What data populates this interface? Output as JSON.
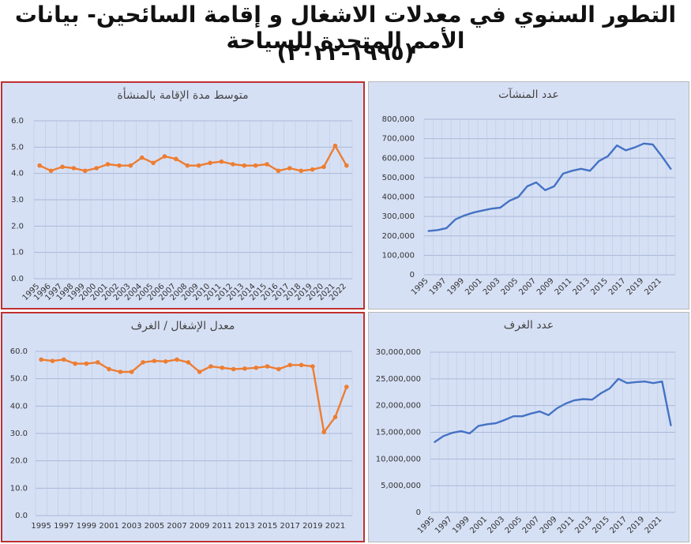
{
  "page": {
    "title_line1": "التطور السنوي في معدلات الاشغال و إقامة السائحين- بيانات الأمم المتحدة للسياحة",
    "title_line2": "(١٩٩٥-٢٠٢٢)"
  },
  "chart_data": [
    {
      "id": "avg-stay",
      "type": "line",
      "title": "متوسط مدة الإقامة بالمنشأة",
      "x": [
        1995,
        1996,
        1997,
        1998,
        1999,
        2000,
        2001,
        2002,
        2003,
        2004,
        2005,
        2006,
        2007,
        2008,
        2009,
        2010,
        2011,
        2012,
        2013,
        2014,
        2015,
        2016,
        2017,
        2018,
        2019,
        2020,
        2021,
        2022
      ],
      "x_tick_labels": [
        "1995",
        "1996",
        "1997",
        "1998",
        "1999",
        "2000",
        "2001",
        "2002",
        "2003",
        "2004",
        "2005",
        "2006",
        "2007",
        "2008",
        "2009",
        "2010",
        "2011",
        "2012",
        "2013",
        "2014",
        "2015",
        "2016",
        "2017",
        "2018",
        "2019",
        "2020",
        "2021",
        "2022"
      ],
      "x_labels_rotated": true,
      "y_tick_labels": [
        "6.0",
        "5.0",
        "4.0",
        "3.0",
        "2.0",
        "1.0",
        "0.0"
      ],
      "series": [
        {
          "values": [
            4.3,
            4.1,
            4.25,
            4.2,
            4.1,
            4.2,
            4.35,
            4.3,
            4.3,
            4.6,
            4.4,
            4.65,
            4.55,
            4.3,
            4.3,
            4.4,
            4.45,
            4.35,
            4.3,
            4.3,
            4.35,
            4.1,
            4.2,
            4.1,
            4.15,
            4.25,
            5.05,
            4.3
          ],
          "color": "#ed7d31",
          "markers": true
        }
      ],
      "ylim": [
        0,
        6
      ],
      "grid": true
    },
    {
      "id": "establishments",
      "type": "line",
      "title": "عدد المنشآت",
      "x": [
        1995,
        1996,
        1997,
        1998,
        1999,
        2000,
        2001,
        2002,
        2003,
        2004,
        2005,
        2006,
        2007,
        2008,
        2009,
        2010,
        2011,
        2012,
        2013,
        2014,
        2015,
        2016,
        2017,
        2018,
        2019,
        2020,
        2021,
        2022
      ],
      "x_tick_labels": [
        "1995",
        "1997",
        "1999",
        "2001",
        "2003",
        "2005",
        "2007",
        "2009",
        "2011",
        "2013",
        "2015",
        "2017",
        "2019",
        "2021"
      ],
      "x_labels_rotated": true,
      "y_tick_labels": [
        "800,000",
        "700,000",
        "600,000",
        "500,000",
        "400,000",
        "300,000",
        "200,000",
        "100,000",
        "0"
      ],
      "series": [
        {
          "values": [
            225000,
            230000,
            240000,
            285000,
            305000,
            320000,
            330000,
            340000,
            345000,
            380000,
            400000,
            455000,
            475000,
            435000,
            455000,
            520000,
            535000,
            545000,
            535000,
            585000,
            610000,
            665000,
            640000,
            655000,
            675000,
            670000,
            610000,
            545000
          ],
          "color": "#4472c4",
          "markers": false
        }
      ],
      "ylim": [
        0,
        800000
      ],
      "grid": true
    },
    {
      "id": "occupancy",
      "type": "line",
      "title": "معدل الإشغال / الغرف",
      "x": [
        1995,
        1996,
        1997,
        1998,
        1999,
        2000,
        2001,
        2002,
        2003,
        2004,
        2005,
        2006,
        2007,
        2008,
        2009,
        2010,
        2011,
        2012,
        2013,
        2014,
        2015,
        2016,
        2017,
        2018,
        2019,
        2020,
        2021,
        2022
      ],
      "x_tick_labels": [
        "1995",
        "1997",
        "1999",
        "2001",
        "2003",
        "2005",
        "2007",
        "2009",
        "2011",
        "2013",
        "2015",
        "2017",
        "2019",
        "2021"
      ],
      "x_labels_rotated": false,
      "y_tick_labels": [
        "60.0",
        "50.0",
        "40.0",
        "30.0",
        "20.0",
        "10.0",
        "0.0"
      ],
      "series": [
        {
          "values": [
            57.0,
            56.5,
            57.0,
            55.5,
            55.5,
            56.0,
            53.5,
            52.5,
            52.5,
            56.0,
            56.5,
            56.3,
            57.0,
            56.0,
            52.5,
            54.5,
            54.0,
            53.5,
            53.7,
            54.0,
            54.5,
            53.5,
            55.0,
            55.0,
            54.5,
            30.5,
            36.0,
            47.0
          ],
          "color": "#ed7d31",
          "markers": true
        }
      ],
      "ylim": [
        0,
        60
      ],
      "grid": true
    },
    {
      "id": "rooms",
      "type": "line",
      "title": "عدد الغرف",
      "x": [
        1995,
        1996,
        1997,
        1998,
        1999,
        2000,
        2001,
        2002,
        2003,
        2004,
        2005,
        2006,
        2007,
        2008,
        2009,
        2010,
        2011,
        2012,
        2013,
        2014,
        2015,
        2016,
        2017,
        2018,
        2019,
        2020,
        2021,
        2022
      ],
      "x_tick_labels": [
        "1995",
        "1997",
        "1999",
        "2001",
        "2003",
        "2005",
        "2007",
        "2009",
        "2011",
        "2013",
        "2015",
        "2017",
        "2019",
        "2021"
      ],
      "x_labels_rotated": true,
      "y_tick_labels": [
        "30,000,000",
        "25,000,000",
        "20,000,000",
        "15,000,000",
        "10,000,000",
        "5,000,000",
        "0"
      ],
      "series": [
        {
          "values": [
            13200000,
            14300000,
            14900000,
            15200000,
            14800000,
            16200000,
            16500000,
            16700000,
            17300000,
            18000000,
            18000000,
            18500000,
            18900000,
            18200000,
            19500000,
            20400000,
            21000000,
            21200000,
            21100000,
            22300000,
            23200000,
            25000000,
            24200000,
            24400000,
            24500000,
            24200000,
            24500000,
            16300000
          ],
          "color": "#4472c4",
          "markers": false
        }
      ],
      "ylim": [
        0,
        30000000
      ],
      "grid": true
    }
  ]
}
